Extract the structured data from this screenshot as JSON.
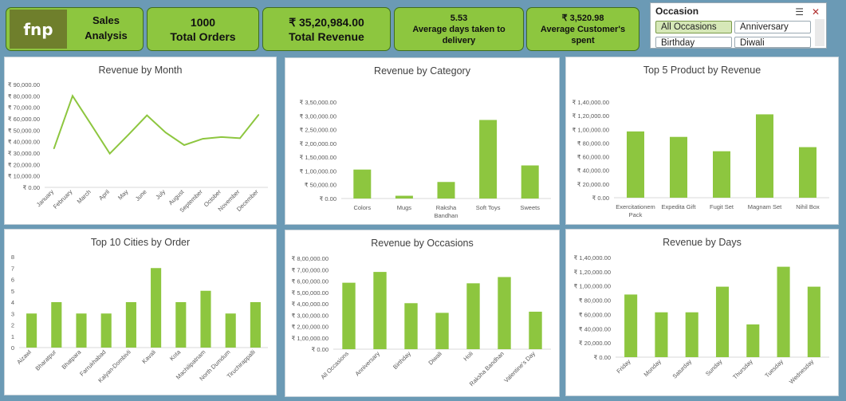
{
  "kpis": {
    "brand": "fnp",
    "title_line1": "Sales",
    "title_line2": "Analysis",
    "orders_value": "1000",
    "orders_label": "Total Orders",
    "revenue_value": "₹ 35,20,984.00",
    "revenue_label": "Total Revenue",
    "days_value": "5.53",
    "days_label_line1": "Average days taken to",
    "days_label_line2": "delivery",
    "spent_value": "₹ 3,520.98",
    "spent_label_line1": "Average Customer's",
    "spent_label_line2": "spent"
  },
  "slicer": {
    "title": "Occasion",
    "items": [
      "All Occasions",
      "Anniversary",
      "Birthday",
      "Diwali"
    ],
    "selected": "All Occasions",
    "multi_select_icon": "multi-select-icon",
    "clear_filter_icon": "clear-filter-icon"
  },
  "colors": {
    "accent": "#8dc63f",
    "bar": "#8dc63f",
    "background": "#6b9ab5",
    "kpi_border": "#3f6d1e"
  },
  "chart_data": [
    {
      "id": "month",
      "type": "line",
      "title": "Revenue by Month",
      "categories": [
        "January",
        "February",
        "March",
        "April",
        "May",
        "June",
        "July",
        "August",
        "September",
        "October",
        "November",
        "December"
      ],
      "values": [
        34000,
        80000,
        55000,
        29500,
        46000,
        63000,
        48000,
        37000,
        42500,
        44000,
        43000,
        63500
      ],
      "ylim": [
        0,
        90000
      ],
      "ticks": [
        "₹ 0.00",
        "₹ 10,000.00",
        "₹ 20,000.00",
        "₹ 30,000.00",
        "₹ 40,000.00",
        "₹ 50,000.00",
        "₹ 60,000.00",
        "₹ 70,000.00",
        "₹ 80,000.00",
        "₹ 90,000.00"
      ],
      "grid": false
    },
    {
      "id": "category",
      "type": "bar",
      "title": "Revenue by Category",
      "categories": [
        [
          "Colors"
        ],
        [
          "Mugs"
        ],
        [
          "Raksha",
          "Bandhan"
        ],
        [
          "Soft Toys"
        ],
        [
          "Sweets"
        ]
      ],
      "values": [
        105000,
        10000,
        60000,
        285000,
        120000
      ],
      "ylim": [
        0,
        350000
      ],
      "ticks": [
        "₹ 0.00",
        "₹ 50,000.00",
        "₹ 1,00,000.00",
        "₹ 1,50,000.00",
        "₹ 2,00,000.00",
        "₹ 2,50,000.00",
        "₹ 3,00,000.00",
        "₹ 3,50,000.00"
      ],
      "grid": false
    },
    {
      "id": "product",
      "type": "bar",
      "title": "Top 5 Product by Revenue",
      "categories": [
        [
          "Exercitationem",
          "Pack"
        ],
        [
          "Expedita Gift"
        ],
        [
          "Fugit Set"
        ],
        [
          "Magnam Set"
        ],
        [
          "Nihil Box"
        ]
      ],
      "values": [
        97000,
        89000,
        68000,
        122000,
        74000
      ],
      "ylim": [
        0,
        140000
      ],
      "ticks": [
        "₹ 0.00",
        "₹ 20,000.00",
        "₹ 40,000.00",
        "₹ 60,000.00",
        "₹ 80,000.00",
        "₹ 1,00,000.00",
        "₹ 1,20,000.00",
        "₹ 1,40,000.00"
      ],
      "grid": false
    },
    {
      "id": "cities",
      "type": "bar",
      "title": "Top 10 Cities by Order",
      "categories": [
        "Aizawl",
        "Bharatpur",
        "Bhatpara",
        "Farrukhabad",
        "Kalyan-Dombivli",
        "Kavali",
        "Kota",
        "Machilipatnam",
        "North Dumdum",
        "Tiruchirappalli"
      ],
      "values": [
        3,
        4,
        3,
        3,
        4,
        7,
        4,
        5,
        3,
        4
      ],
      "ylim": [
        0,
        8
      ],
      "ticks": [
        "0",
        "1",
        "2",
        "3",
        "4",
        "5",
        "6",
        "7",
        "8"
      ],
      "grid": false
    },
    {
      "id": "occasions",
      "type": "bar",
      "title": "Revenue by Occasions",
      "categories": [
        "All Occasions",
        "Anniversary",
        "Birthday",
        "Diwali",
        "Holi",
        "Raksha Bandhan",
        "Valentine's Day"
      ],
      "values": [
        585000,
        680000,
        405000,
        320000,
        580000,
        635000,
        330000
      ],
      "ylim": [
        0,
        800000
      ],
      "ticks": [
        "₹ 0.00",
        "₹ 1,00,000.00",
        "₹ 2,00,000.00",
        "₹ 3,00,000.00",
        "₹ 4,00,000.00",
        "₹ 5,00,000.00",
        "₹ 6,00,000.00",
        "₹ 7,00,000.00",
        "₹ 8,00,000.00"
      ],
      "grid": false
    },
    {
      "id": "days",
      "type": "bar",
      "title": "Revenue by Days",
      "categories": [
        "Friday",
        "Monday",
        "Saturday",
        "Sunday",
        "Thursday",
        "Tuesday",
        "Wednesday"
      ],
      "values": [
        88000,
        63000,
        63000,
        99000,
        46000,
        127000,
        99000
      ],
      "ylim": [
        0,
        140000
      ],
      "ticks": [
        "₹ 0.00",
        "₹ 20,000.00",
        "₹ 40,000.00",
        "₹ 60,000.00",
        "₹ 80,000.00",
        "₹ 1,00,000.00",
        "₹ 1,20,000.00",
        "₹ 1,40,000.00"
      ],
      "grid": false
    }
  ]
}
